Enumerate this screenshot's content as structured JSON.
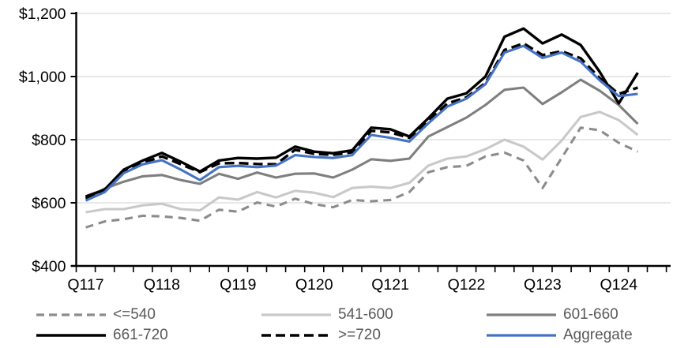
{
  "chart_data": {
    "type": "line",
    "title": "",
    "grid": true,
    "legend_position": "bottom",
    "x_axis": {
      "tick_labels": [
        "Q117",
        "Q118",
        "Q119",
        "Q120",
        "Q121",
        "Q122",
        "Q123",
        "Q124"
      ],
      "label_every_n_categories": 4,
      "categories": [
        "Q117",
        "Q217",
        "Q317",
        "Q417",
        "Q118",
        "Q218",
        "Q318",
        "Q418",
        "Q119",
        "Q219",
        "Q319",
        "Q419",
        "Q120",
        "Q220",
        "Q320",
        "Q420",
        "Q121",
        "Q221",
        "Q321",
        "Q421",
        "Q122",
        "Q222",
        "Q322",
        "Q422",
        "Q123",
        "Q223",
        "Q323",
        "Q423",
        "Q124",
        "Q224"
      ]
    },
    "y_axis": {
      "tick_labels": [
        "$400",
        "$600",
        "$800",
        "$1,000",
        "$1,200"
      ],
      "tick_values": [
        400,
        600,
        800,
        1000,
        1200
      ],
      "min": 400,
      "max": 1200
    },
    "series": [
      {
        "id": "lte-540",
        "name": "<=540",
        "color": "#8C8C8C",
        "style": "dashed",
        "values": [
          522,
          541,
          548,
          559,
          557,
          552,
          543,
          578,
          572,
          601,
          588,
          613,
          596,
          586,
          609,
          605,
          609,
          634,
          697,
          713,
          717,
          747,
          759,
          734,
          647,
          742,
          838,
          830,
          790,
          762
        ]
      },
      {
        "id": "541-600",
        "name": "541-600",
        "color": "#C9C9C9",
        "style": "solid",
        "values": [
          570,
          580,
          580,
          592,
          597,
          580,
          576,
          617,
          610,
          634,
          617,
          638,
          632,
          618,
          647,
          651,
          647,
          663,
          718,
          740,
          747,
          770,
          800,
          778,
          737,
          797,
          872,
          888,
          862,
          815
        ]
      },
      {
        "id": "601-660",
        "name": "601-660",
        "color": "#7F7F7F",
        "style": "solid",
        "values": [
          612,
          645,
          667,
          684,
          688,
          672,
          660,
          692,
          676,
          696,
          680,
          692,
          693,
          680,
          705,
          738,
          733,
          740,
          810,
          840,
          870,
          910,
          958,
          965,
          913,
          950,
          990,
          955,
          910,
          850
        ]
      },
      {
        "id": "661-720",
        "name": "661-720",
        "color": "#000000",
        "style": "solid",
        "values": [
          620,
          642,
          705,
          734,
          758,
          730,
          699,
          734,
          742,
          740,
          743,
          778,
          762,
          757,
          766,
          838,
          833,
          810,
          868,
          930,
          947,
          1000,
          1126,
          1152,
          1105,
          1133,
          1100,
          1015,
          915,
          1012
        ]
      },
      {
        "id": "gte-720",
        "name": ">=720",
        "color": "#000000",
        "style": "dashed",
        "values": [
          615,
          640,
          700,
          726,
          747,
          722,
          697,
          725,
          726,
          723,
          722,
          768,
          755,
          752,
          760,
          828,
          823,
          806,
          858,
          915,
          934,
          980,
          1084,
          1105,
          1068,
          1080,
          1058,
          995,
          945,
          965
        ]
      },
      {
        "id": "aggregate",
        "name": "Aggregate",
        "color": "#4472C4",
        "style": "solid",
        "values": [
          607,
          634,
          694,
          722,
          735,
          705,
          672,
          713,
          717,
          713,
          718,
          751,
          745,
          742,
          751,
          815,
          806,
          794,
          852,
          905,
          930,
          976,
          1076,
          1097,
          1059,
          1076,
          1047,
          988,
          938,
          945
        ]
      }
    ],
    "colors": {
      "grid": "#D9D9D9",
      "axis": "#000000",
      "axis_text": "#000000",
      "legend_text": "#595959"
    }
  }
}
